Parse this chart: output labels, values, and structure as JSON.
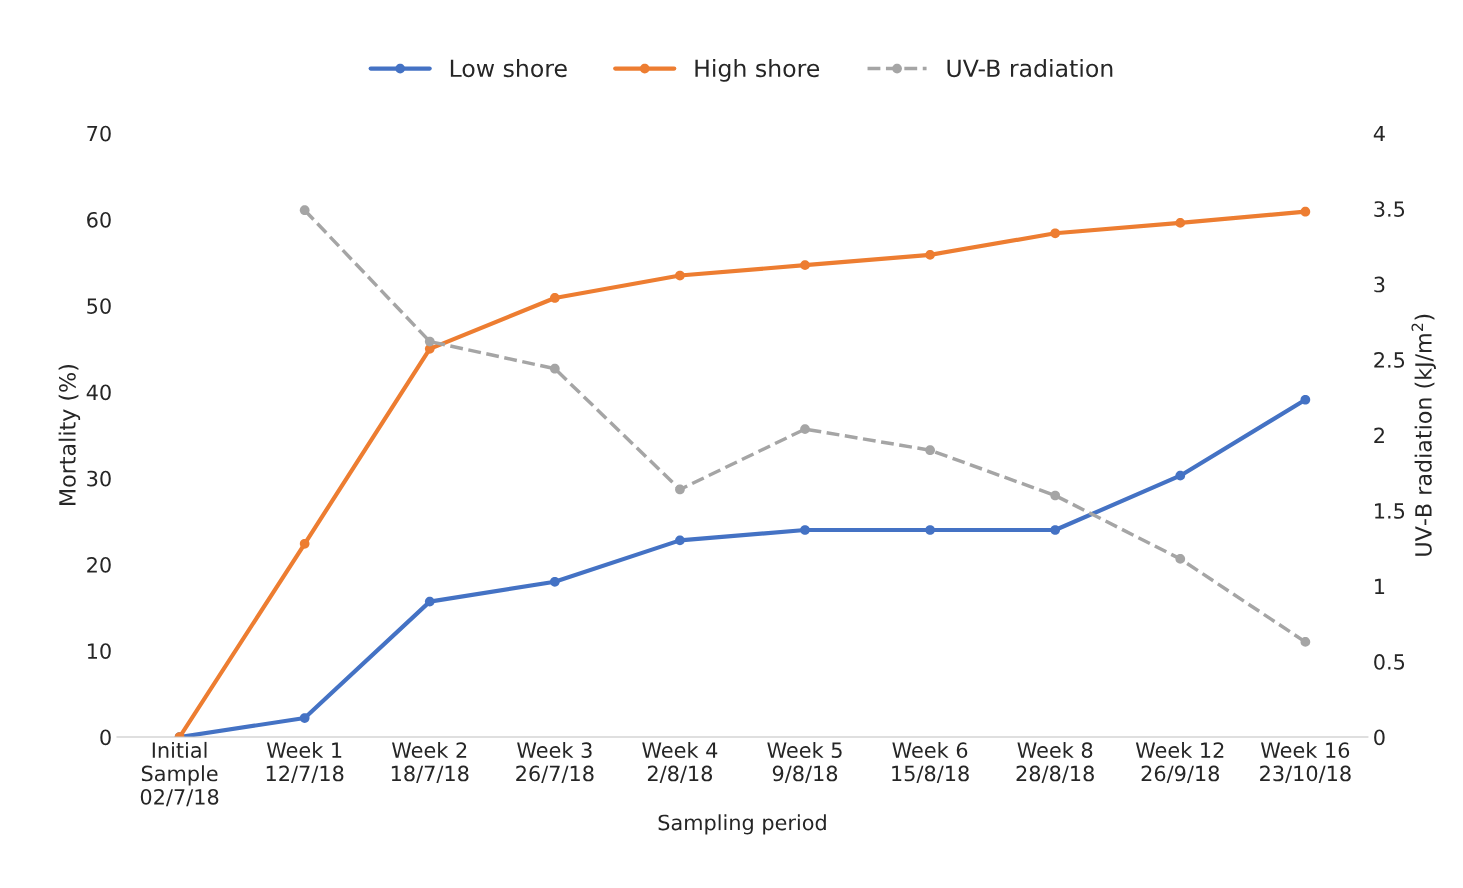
{
  "chart_data": {
    "type": "line",
    "xlabel": "Sampling period",
    "ylabel": "Mortality (%)",
    "y2label": "UV-B radiation (kJ/m$^{2}$)",
    "categories": [
      "Initial\nSample\n02/7/18",
      "Week 1\n12/7/18",
      "Week 2\n18/7/18",
      "Week 3\n26/7/18",
      "Week 4\n2/8/18",
      "Week 5\n9/8/18",
      "Week 6\n15/8/18",
      "Week 8\n28/8/18",
      "Week 12\n26/9/18",
      "Week 16\n23/10/18"
    ],
    "series": [
      {
        "name": "Low shore",
        "color": "#4472c4",
        "values": [
          0,
          2.2,
          15.7,
          18.0,
          22.8,
          24.0,
          24.0,
          24.0,
          30.3,
          39.1
        ]
      },
      {
        "name": "High shore",
        "color": "#ed7d31",
        "values": [
          0,
          22.4,
          45.0,
          50.9,
          53.5,
          54.7,
          55.9,
          58.4,
          59.6,
          60.9
        ]
      },
      {
        "name": "UV-B radiation",
        "color": "#a5a5a5",
        "axis": "y2",
        "line_style": "dashed",
        "values": [
          null,
          3.49,
          2.62,
          2.44,
          1.64,
          2.04,
          1.9,
          1.6,
          1.18,
          0.63
        ]
      }
    ],
    "ylim": [
      0,
      70
    ],
    "yticks": [
      0,
      10,
      20,
      30,
      40,
      50,
      60,
      70
    ],
    "y2lim": [
      0,
      4
    ],
    "y2ticks": [
      0,
      0.5,
      1,
      1.5,
      2,
      2.5,
      3,
      3.5,
      4
    ],
    "marker": "circle",
    "line_style": "solid",
    "grid": false,
    "legend": "top"
  }
}
